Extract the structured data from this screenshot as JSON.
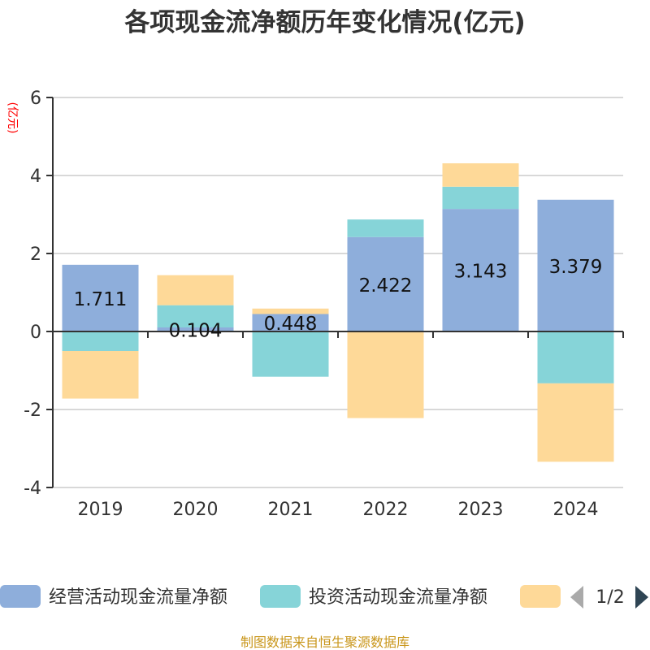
{
  "chart_data": {
    "type": "bar",
    "stacked": true,
    "title": "各项现金流净额历年变化情况(亿元)",
    "ylabel": "(亿元)",
    "xlabel": "",
    "ylim": [
      -4,
      6
    ],
    "yticks": [
      -4,
      -2,
      0,
      2,
      4,
      6
    ],
    "grid": true,
    "categories": [
      "2019",
      "2020",
      "2021",
      "2022",
      "2023",
      "2024"
    ],
    "series": [
      {
        "name": "经营活动现金流量净额",
        "color": "#8eaedb",
        "values": [
          1.711,
          0.104,
          0.448,
          2.422,
          3.143,
          3.379
        ],
        "labels": [
          "1.711",
          "0.104",
          "0.448",
          "2.422",
          "3.143",
          "3.379"
        ]
      },
      {
        "name": "投资活动现金流量净额",
        "color": "#86d4d8",
        "values": [
          -0.5,
          0.57,
          -1.16,
          0.45,
          0.57,
          -1.33
        ]
      },
      {
        "name": "",
        "color": "#fed998",
        "values": [
          -1.22,
          0.77,
          0.14,
          -2.22,
          0.6,
          -2.01
        ]
      }
    ],
    "legend": {
      "placement": "bottom",
      "page": "1/2"
    }
  },
  "source": "制图数据来自恒生聚源数据库"
}
